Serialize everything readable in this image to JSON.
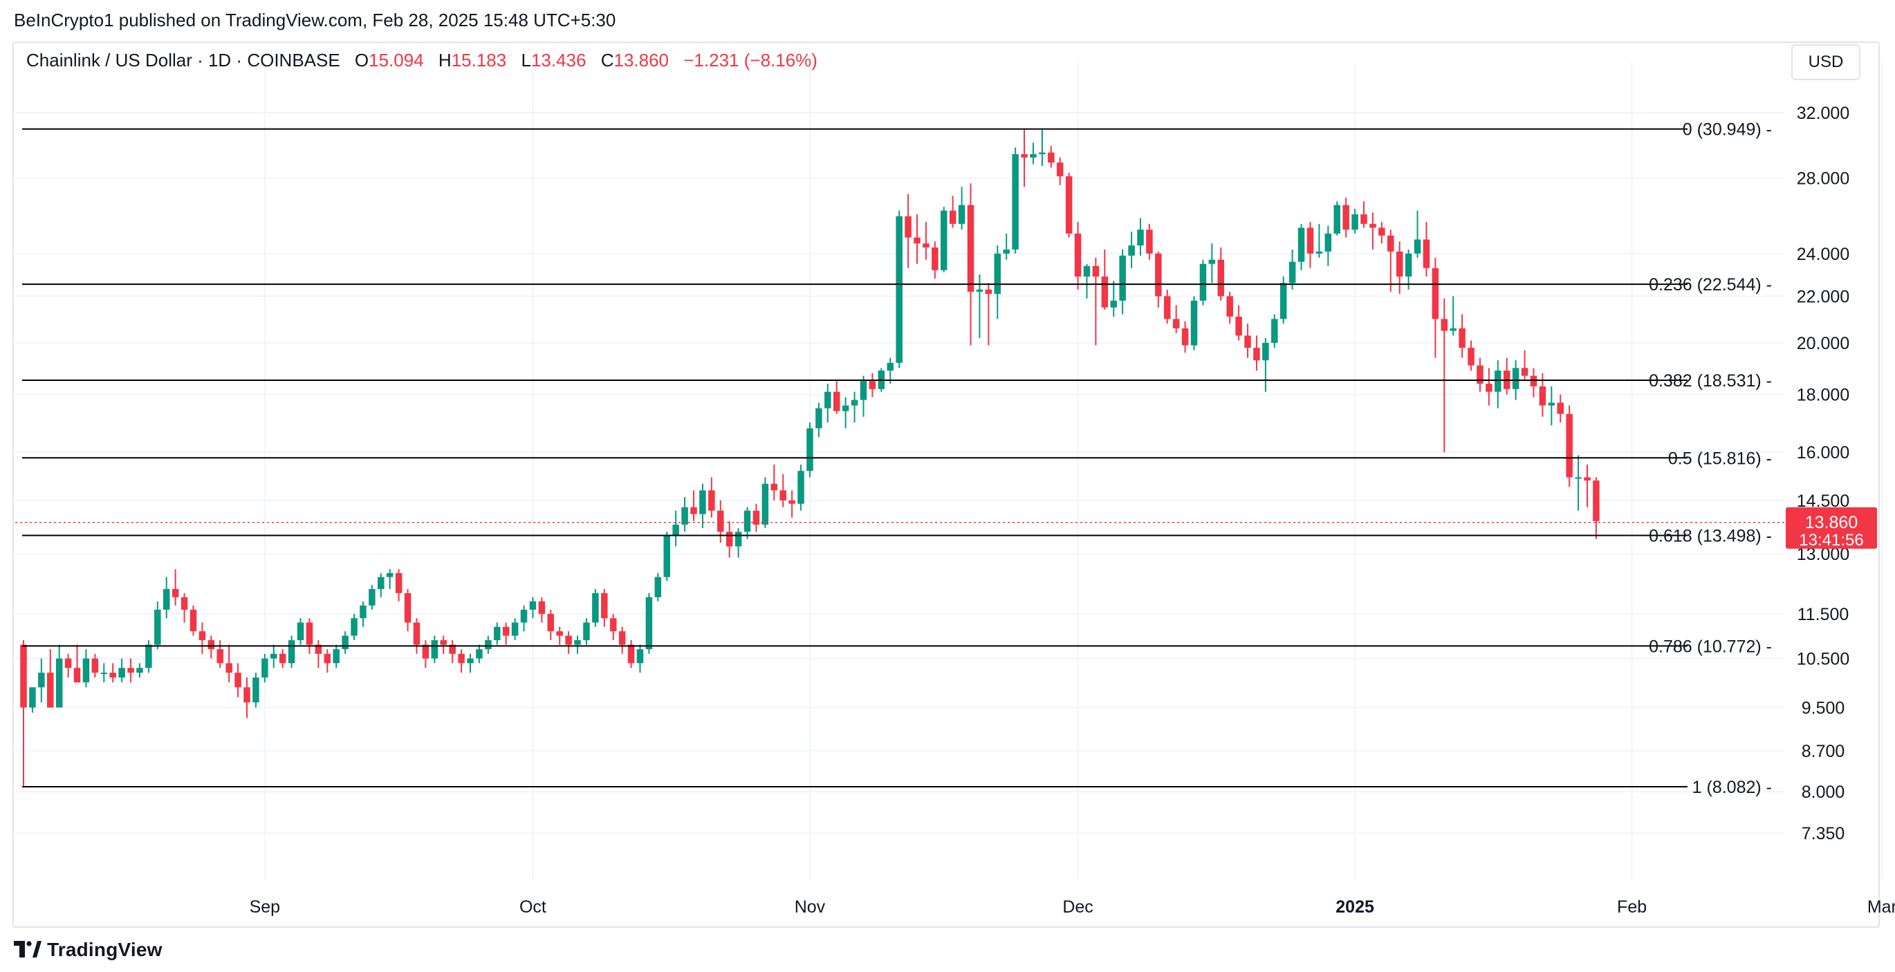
{
  "header": {
    "published": "BeInCrypto1 published on TradingView.com, Feb 28, 2025 15:48 UTC+5:30"
  },
  "legend": {
    "title": "Chainlink / US Dollar · 1D · COINBASE",
    "o_label": "O",
    "o_value": "15.094",
    "h_label": "H",
    "h_value": "15.183",
    "l_label": "L",
    "l_value": "13.436",
    "c_label": "C",
    "c_value": "13.860",
    "change": "−1.231 (−8.16%)"
  },
  "currency_button": "USD",
  "footer": {
    "brand": "TradingView"
  },
  "colors": {
    "up": "#089981",
    "down": "#f23645",
    "grid": "#f0f3fa",
    "text": "#131722",
    "fib_line": "#000000"
  },
  "chart_data": {
    "type": "candlestick",
    "y_scale": "log",
    "ylim": [
      6.9,
      34.0
    ],
    "y_ticks": [
      "32.000",
      "28.000",
      "24.000",
      "22.000",
      "20.000",
      "18.000",
      "16.000",
      "14.500",
      "13.000",
      "11.500",
      "10.500",
      "9.500",
      "8.700",
      "8.000",
      "7.350"
    ],
    "x_ticks": [
      {
        "label": "Sep",
        "date": "2024-09-01",
        "bold": false
      },
      {
        "label": "Oct",
        "date": "2024-10-01",
        "bold": false
      },
      {
        "label": "Nov",
        "date": "2024-11-01",
        "bold": false
      },
      {
        "label": "Dec",
        "date": "2024-12-01",
        "bold": false
      },
      {
        "label": "2025",
        "date": "2025-01-01",
        "bold": true
      },
      {
        "label": "Feb",
        "date": "2025-02-01",
        "bold": false
      },
      {
        "label": "Mar",
        "date": "2025-03-01",
        "bold": false
      }
    ],
    "first_date": "2024-08-05",
    "last_price": {
      "value": "13.860",
      "countdown": "13:41:56"
    },
    "fib_levels": [
      {
        "label": "0 (30.949)",
        "price": 30.949
      },
      {
        "label": "0.236 (22.544)",
        "price": 22.544
      },
      {
        "label": "0.382 (18.531)",
        "price": 18.531
      },
      {
        "label": "0.5 (15.816)",
        "price": 15.816
      },
      {
        "label": "0.618 (13.498)",
        "price": 13.498
      },
      {
        "label": "0.786 (10.772)",
        "price": 10.772
      },
      {
        "label": "1 (8.082)",
        "price": 8.082
      }
    ],
    "ohlc": [
      [
        10.8,
        10.9,
        8.08,
        9.5
      ],
      [
        9.5,
        9.9,
        9.4,
        9.9
      ],
      [
        9.9,
        10.5,
        9.6,
        10.2
      ],
      [
        10.2,
        10.7,
        9.5,
        9.5
      ],
      [
        9.5,
        10.8,
        9.5,
        10.5
      ],
      [
        10.5,
        10.6,
        10.1,
        10.3
      ],
      [
        10.3,
        10.8,
        10.0,
        10.0
      ],
      [
        10.0,
        10.7,
        9.9,
        10.5
      ],
      [
        10.5,
        10.6,
        10.1,
        10.2
      ],
      [
        10.2,
        10.4,
        10.0,
        10.2
      ],
      [
        10.2,
        10.4,
        10.0,
        10.1
      ],
      [
        10.1,
        10.5,
        10.0,
        10.3
      ],
      [
        10.3,
        10.5,
        10.0,
        10.2
      ],
      [
        10.2,
        10.4,
        10.1,
        10.3
      ],
      [
        10.3,
        10.9,
        10.2,
        10.8
      ],
      [
        10.8,
        11.8,
        10.7,
        11.6
      ],
      [
        11.6,
        12.4,
        11.4,
        12.1
      ],
      [
        12.1,
        12.6,
        11.7,
        11.9
      ],
      [
        11.9,
        12.0,
        11.3,
        11.6
      ],
      [
        11.6,
        11.7,
        11.0,
        11.1
      ],
      [
        11.1,
        11.3,
        10.6,
        10.9
      ],
      [
        10.9,
        11.0,
        10.5,
        10.7
      ],
      [
        10.7,
        10.9,
        10.3,
        10.4
      ],
      [
        10.4,
        10.8,
        10.0,
        10.2
      ],
      [
        10.2,
        10.4,
        9.7,
        9.9
      ],
      [
        9.9,
        10.1,
        9.3,
        9.6
      ],
      [
        9.6,
        10.2,
        9.5,
        10.1
      ],
      [
        10.1,
        10.6,
        10.0,
        10.5
      ],
      [
        10.5,
        10.8,
        10.3,
        10.6
      ],
      [
        10.6,
        10.7,
        10.3,
        10.4
      ],
      [
        10.4,
        11.0,
        10.3,
        10.9
      ],
      [
        10.9,
        11.4,
        10.8,
        11.3
      ],
      [
        11.3,
        11.4,
        10.6,
        10.8
      ],
      [
        10.8,
        10.9,
        10.3,
        10.6
      ],
      [
        10.6,
        10.7,
        10.2,
        10.4
      ],
      [
        10.4,
        10.8,
        10.3,
        10.7
      ],
      [
        10.7,
        11.1,
        10.6,
        11.0
      ],
      [
        11.0,
        11.5,
        10.9,
        11.4
      ],
      [
        11.4,
        11.8,
        11.2,
        11.7
      ],
      [
        11.7,
        12.2,
        11.6,
        12.1
      ],
      [
        12.1,
        12.5,
        11.9,
        12.4
      ],
      [
        12.4,
        12.6,
        12.1,
        12.5
      ],
      [
        12.5,
        12.6,
        11.8,
        12.0
      ],
      [
        12.0,
        12.1,
        11.1,
        11.3
      ],
      [
        11.3,
        11.4,
        10.6,
        10.8
      ],
      [
        10.8,
        10.9,
        10.3,
        10.5
      ],
      [
        10.5,
        11.0,
        10.4,
        10.9
      ],
      [
        10.9,
        11.0,
        10.6,
        10.8
      ],
      [
        10.8,
        10.9,
        10.4,
        10.6
      ],
      [
        10.6,
        10.7,
        10.2,
        10.4
      ],
      [
        10.4,
        10.6,
        10.2,
        10.5
      ],
      [
        10.5,
        10.8,
        10.4,
        10.7
      ],
      [
        10.7,
        11.0,
        10.6,
        10.9
      ],
      [
        10.9,
        11.3,
        10.8,
        11.2
      ],
      [
        11.2,
        11.3,
        10.8,
        11.0
      ],
      [
        11.0,
        11.4,
        10.9,
        11.3
      ],
      [
        11.3,
        11.7,
        11.1,
        11.6
      ],
      [
        11.6,
        11.9,
        11.4,
        11.8
      ],
      [
        11.8,
        11.9,
        11.3,
        11.5
      ],
      [
        11.5,
        11.6,
        10.9,
        11.1
      ],
      [
        11.1,
        11.2,
        10.8,
        11.0
      ],
      [
        11.0,
        11.1,
        10.6,
        10.8
      ],
      [
        10.8,
        11.0,
        10.6,
        10.9
      ],
      [
        10.9,
        11.4,
        10.8,
        11.3
      ],
      [
        11.3,
        12.1,
        11.2,
        12.0
      ],
      [
        12.0,
        12.1,
        11.2,
        11.4
      ],
      [
        11.4,
        11.5,
        10.9,
        11.1
      ],
      [
        11.1,
        11.2,
        10.6,
        10.8
      ],
      [
        10.8,
        10.9,
        10.3,
        10.4
      ],
      [
        10.4,
        10.8,
        10.2,
        10.7
      ],
      [
        10.7,
        12.0,
        10.6,
        11.9
      ],
      [
        11.9,
        12.5,
        11.8,
        12.4
      ],
      [
        12.4,
        13.6,
        12.3,
        13.5
      ],
      [
        13.5,
        14.2,
        13.2,
        13.8
      ],
      [
        13.8,
        14.6,
        13.6,
        14.3
      ],
      [
        14.3,
        14.8,
        13.9,
        14.1
      ],
      [
        14.1,
        15.0,
        13.7,
        14.8
      ],
      [
        14.8,
        15.2,
        14.0,
        14.2
      ],
      [
        14.2,
        14.5,
        13.3,
        13.6
      ],
      [
        13.6,
        13.9,
        12.9,
        13.2
      ],
      [
        13.2,
        13.7,
        12.9,
        13.6
      ],
      [
        13.6,
        14.3,
        13.4,
        14.2
      ],
      [
        14.2,
        14.4,
        13.6,
        13.8
      ],
      [
        13.8,
        15.2,
        13.7,
        15.0
      ],
      [
        15.0,
        15.6,
        14.5,
        14.8
      ],
      [
        14.8,
        15.3,
        14.3,
        14.5
      ],
      [
        14.5,
        14.8,
        14.0,
        14.4
      ],
      [
        14.4,
        15.6,
        14.2,
        15.4
      ],
      [
        15.4,
        17.0,
        15.2,
        16.8
      ],
      [
        16.8,
        17.7,
        16.5,
        17.5
      ],
      [
        17.5,
        18.4,
        17.0,
        18.1
      ],
      [
        18.1,
        18.5,
        17.3,
        17.4
      ],
      [
        17.4,
        17.9,
        16.8,
        17.6
      ],
      [
        17.6,
        18.1,
        17.0,
        17.8
      ],
      [
        17.8,
        18.7,
        17.2,
        18.5
      ],
      [
        18.5,
        18.8,
        17.9,
        18.2
      ],
      [
        18.2,
        19.0,
        18.1,
        18.9
      ],
      [
        18.9,
        19.4,
        18.4,
        19.2
      ],
      [
        19.2,
        26.2,
        19.0,
        25.9
      ],
      [
        25.9,
        27.1,
        23.3,
        24.8
      ],
      [
        24.8,
        26.0,
        23.5,
        24.5
      ],
      [
        24.5,
        25.6,
        23.7,
        24.3
      ],
      [
        24.3,
        24.6,
        22.8,
        23.2
      ],
      [
        23.2,
        26.4,
        23.1,
        26.2
      ],
      [
        26.2,
        27.0,
        25.3,
        25.5
      ],
      [
        25.5,
        27.5,
        25.2,
        26.5
      ],
      [
        26.5,
        27.7,
        19.9,
        22.2
      ],
      [
        22.2,
        23.0,
        20.2,
        22.3
      ],
      [
        22.3,
        22.6,
        19.9,
        22.1
      ],
      [
        22.1,
        24.4,
        21.0,
        24.0
      ],
      [
        24.0,
        25.0,
        23.7,
        24.2
      ],
      [
        24.2,
        29.8,
        24.0,
        29.4
      ],
      [
        29.4,
        30.9,
        27.5,
        29.2
      ],
      [
        29.2,
        30.1,
        28.8,
        29.4
      ],
      [
        29.4,
        30.9,
        28.7,
        29.5
      ],
      [
        29.5,
        29.9,
        28.6,
        28.9
      ],
      [
        28.9,
        29.2,
        27.6,
        28.1
      ],
      [
        28.1,
        28.3,
        24.8,
        25.0
      ],
      [
        25.0,
        25.6,
        22.3,
        22.9
      ],
      [
        22.9,
        23.5,
        21.9,
        23.4
      ],
      [
        23.4,
        23.8,
        19.9,
        22.9
      ],
      [
        22.9,
        24.2,
        21.4,
        21.5
      ],
      [
        21.5,
        22.7,
        21.1,
        21.8
      ],
      [
        21.8,
        24.2,
        21.2,
        23.9
      ],
      [
        23.9,
        25.1,
        23.3,
        24.4
      ],
      [
        24.4,
        25.8,
        23.9,
        25.2
      ],
      [
        25.2,
        25.5,
        23.7,
        24.0
      ],
      [
        24.0,
        24.1,
        21.5,
        22.0
      ],
      [
        22.0,
        22.3,
        20.8,
        21.0
      ],
      [
        21.0,
        21.6,
        20.4,
        20.6
      ],
      [
        20.6,
        20.9,
        19.6,
        19.9
      ],
      [
        19.9,
        22.0,
        19.7,
        21.8
      ],
      [
        21.8,
        23.7,
        21.6,
        23.5
      ],
      [
        23.5,
        24.5,
        22.6,
        23.7
      ],
      [
        23.7,
        24.3,
        21.8,
        22.0
      ],
      [
        22.0,
        22.2,
        20.8,
        21.1
      ],
      [
        21.1,
        21.6,
        20.1,
        20.3
      ],
      [
        20.3,
        20.8,
        19.4,
        19.8
      ],
      [
        19.8,
        20.3,
        18.9,
        19.3
      ],
      [
        19.3,
        20.2,
        18.1,
        20.0
      ],
      [
        20.0,
        21.2,
        19.8,
        21.0
      ],
      [
        21.0,
        22.9,
        20.8,
        22.6
      ],
      [
        22.6,
        24.2,
        22.3,
        23.6
      ],
      [
        23.6,
        25.5,
        23.2,
        25.3
      ],
      [
        25.3,
        25.6,
        23.3,
        24.0
      ],
      [
        24.0,
        25.5,
        23.8,
        24.1
      ],
      [
        24.1,
        25.4,
        23.4,
        25.0
      ],
      [
        25.0,
        26.7,
        24.9,
        26.5
      ],
      [
        26.5,
        26.9,
        24.8,
        25.2
      ],
      [
        25.2,
        26.3,
        25.0,
        26.0
      ],
      [
        26.0,
        26.7,
        25.3,
        25.5
      ],
      [
        25.5,
        26.1,
        24.2,
        25.3
      ],
      [
        25.3,
        25.6,
        24.5,
        24.9
      ],
      [
        24.9,
        25.2,
        22.2,
        24.1
      ],
      [
        24.1,
        24.6,
        22.1,
        22.9
      ],
      [
        22.9,
        24.2,
        22.3,
        24.0
      ],
      [
        24.0,
        26.2,
        23.8,
        24.7
      ],
      [
        24.7,
        25.6,
        22.9,
        23.3
      ],
      [
        23.3,
        23.8,
        19.4,
        21.0
      ],
      [
        21.0,
        21.9,
        16.0,
        20.5
      ],
      [
        20.5,
        22.0,
        20.3,
        20.6
      ],
      [
        20.6,
        21.2,
        19.4,
        19.8
      ],
      [
        19.8,
        20.1,
        18.9,
        19.1
      ],
      [
        19.1,
        19.4,
        18.1,
        18.4
      ],
      [
        18.4,
        19.0,
        17.6,
        18.1
      ],
      [
        18.1,
        19.3,
        17.5,
        18.9
      ],
      [
        18.9,
        19.4,
        18.0,
        18.2
      ],
      [
        18.2,
        19.3,
        17.8,
        19.0
      ],
      [
        19.0,
        19.7,
        18.5,
        18.7
      ],
      [
        18.7,
        19.0,
        17.9,
        18.3
      ],
      [
        18.3,
        18.8,
        17.2,
        17.6
      ],
      [
        17.6,
        18.3,
        16.9,
        17.7
      ],
      [
        17.7,
        18.0,
        17.0,
        17.3
      ],
      [
        17.3,
        17.6,
        14.9,
        15.2
      ],
      [
        15.2,
        15.9,
        14.2,
        15.2
      ],
      [
        15.2,
        15.6,
        14.3,
        15.1
      ],
      [
        15.1,
        15.2,
        13.4,
        13.9
      ]
    ]
  }
}
